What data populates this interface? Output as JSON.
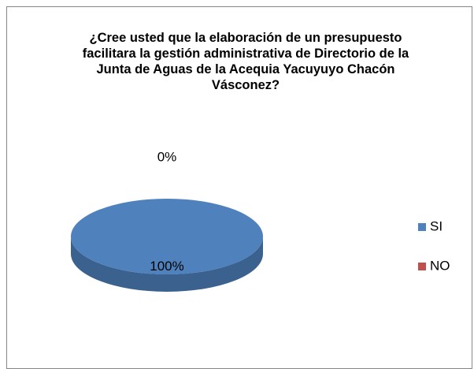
{
  "chart_data": {
    "type": "pie",
    "title": "¿Cree usted que la elaboración de un presupuesto facilitara la gestión administrativa de Directorio de la Junta de Aguas de la Acequia Yacuyuyo Chacón Vásconez?",
    "categories": [
      "SI",
      "NO"
    ],
    "values": [
      100,
      0
    ],
    "value_labels": [
      "100%",
      "0%"
    ],
    "colors": [
      "#4f81bd",
      "#c0504d"
    ],
    "legend": "right"
  }
}
